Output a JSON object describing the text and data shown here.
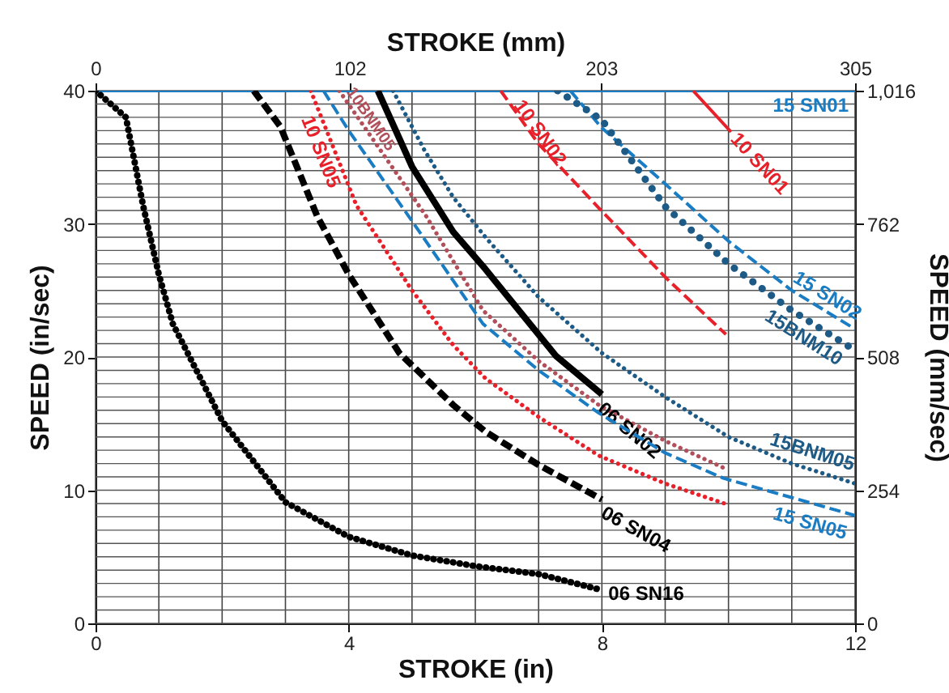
{
  "chart_data": {
    "type": "line",
    "xlabel": "STROKE (in)",
    "ylabel": "SPEED (in/sec)",
    "x2label": "STROKE (mm)",
    "y2label": "SPEED (mm/sec)",
    "xlim": [
      0,
      12
    ],
    "ylim": [
      0,
      40
    ],
    "x2lim": [
      0,
      305
    ],
    "y2lim": [
      0,
      1016
    ],
    "xticks": [
      0,
      {
        "value": 1,
        "label": null
      },
      {
        "value": 2,
        "label": null
      },
      {
        "value": 3,
        "label": null
      },
      4,
      {
        "value": 5,
        "label": null
      },
      {
        "value": 6,
        "label": null
      },
      {
        "value": 7,
        "label": null
      },
      8,
      {
        "value": 9,
        "label": null
      },
      {
        "value": 10,
        "label": null
      },
      {
        "value": 11,
        "label": null
      },
      12
    ],
    "yticks": [
      0,
      {
        "value": 1,
        "label": null
      },
      {
        "value": 2,
        "label": null
      },
      {
        "value": 3,
        "label": null
      },
      {
        "value": 4,
        "label": null
      },
      {
        "value": 5,
        "label": null
      },
      {
        "value": 6,
        "label": null
      },
      {
        "value": 7,
        "label": null
      },
      {
        "value": 8,
        "label": null
      },
      {
        "value": 9,
        "label": null
      },
      10,
      {
        "value": 11,
        "label": null
      },
      {
        "value": 12,
        "label": null
      },
      {
        "value": 13,
        "label": null
      },
      {
        "value": 14,
        "label": null
      },
      {
        "value": 15,
        "label": null
      },
      {
        "value": 16,
        "label": null
      },
      {
        "value": 17,
        "label": null
      },
      {
        "value": 18,
        "label": null
      },
      {
        "value": 19,
        "label": null
      },
      20,
      {
        "value": 21,
        "label": null
      },
      {
        "value": 22,
        "label": null
      },
      {
        "value": 23,
        "label": null
      },
      {
        "value": 24,
        "label": null
      },
      {
        "value": 25,
        "label": null
      },
      {
        "value": 26,
        "label": null
      },
      {
        "value": 27,
        "label": null
      },
      {
        "value": 28,
        "label": null
      },
      {
        "value": 29,
        "label": null
      },
      30,
      {
        "value": 31,
        "label": null
      },
      {
        "value": 32,
        "label": null
      },
      {
        "value": 33,
        "label": null
      },
      {
        "value": 34,
        "label": null
      },
      {
        "value": 35,
        "label": null
      },
      {
        "value": 36,
        "label": null
      },
      {
        "value": 37,
        "label": null
      },
      {
        "value": 38,
        "label": null
      },
      {
        "value": 39,
        "label": null
      },
      40
    ],
    "x2ticks": [
      0,
      102,
      203,
      305
    ],
    "y2ticks": [
      0,
      254,
      508,
      762,
      {
        "value": 1016,
        "label": "1,016"
      }
    ],
    "grid": true,
    "series": [
      {
        "name": "15 SN01",
        "color": "#1a7dc4",
        "line_style": "solid",
        "x": [
          0,
          12
        ],
        "values": [
          40,
          40
        ]
      },
      {
        "name": "10 SN01",
        "color": "#e8202a",
        "line_style": "solid",
        "x": [
          9.44,
          10.04
        ],
        "values": [
          40,
          36.9
        ]
      },
      {
        "name": "10 SN02",
        "color": "#e8202a",
        "line_style": "dashed",
        "x": [
          6.4,
          7,
          7.95,
          9,
          9.96
        ],
        "values": [
          40,
          36,
          31.2,
          26,
          21.7
        ]
      },
      {
        "name": "15 SN02",
        "color": "#1a7dc4",
        "line_style": "dashed",
        "x": [
          7.5,
          8,
          9,
          10,
          11,
          12
        ],
        "values": [
          40,
          37.2,
          33,
          28.7,
          25,
          22.1
        ]
      },
      {
        "name": "15BNM10",
        "color": "#1d5b86",
        "line_style": "dotted",
        "x": [
          7.3,
          8,
          9,
          10,
          11,
          12
        ],
        "values": [
          40,
          37.8,
          31.3,
          27,
          23.5,
          20.5
        ]
      },
      {
        "name": "10 SN05",
        "color": "#e8202a",
        "line_style": "dotted",
        "x": [
          3.4,
          4.12,
          5,
          5.65,
          6.16,
          7,
          7.95,
          9,
          10
        ],
        "values": [
          40,
          31.4,
          25,
          20.9,
          18.4,
          15.5,
          12.6,
          10.5,
          8.9
        ]
      },
      {
        "name": "10BNM05",
        "color": "#b14f5a",
        "line_style": "dotted",
        "x": [
          3.85,
          5.22,
          6.12,
          7,
          7.95,
          9,
          9.96
        ],
        "values": [
          40,
          30.6,
          23.5,
          19.7,
          16.4,
          13.7,
          11.6
        ]
      },
      {
        "name": "06 SN02",
        "color": "#000000",
        "line_style": "solid",
        "x": [
          4.46,
          5,
          5.65,
          6.16,
          7.27,
          8
        ],
        "values": [
          40,
          34.3,
          29.4,
          26.6,
          20.1,
          17.2
        ]
      },
      {
        "name": "15BNM05",
        "color": "#1d5b86",
        "line_style": "dotted",
        "x": [
          4.7,
          5.2,
          5.65,
          6.16,
          7,
          8,
          9,
          10,
          11,
          12
        ],
        "values": [
          40,
          35.5,
          32,
          29,
          24.5,
          20.3,
          17,
          14,
          12,
          10.5
        ]
      },
      {
        "name": "06 SN04",
        "color": "#000000",
        "line_style": "dashed",
        "x": [
          2.5,
          2.92,
          3.5,
          4,
          4.8,
          5.65,
          6.16,
          7,
          8
        ],
        "values": [
          40,
          37.3,
          30.6,
          26.2,
          20.3,
          16.4,
          14.4,
          11.9,
          9.3
        ]
      },
      {
        "name": "15 SN05",
        "color": "#1a7dc4",
        "line_style": "dashed",
        "x": [
          3.6,
          4,
          5.06,
          6.12,
          7,
          7.95,
          9,
          9.92,
          12
        ],
        "values": [
          40,
          37,
          29.8,
          22.5,
          19,
          15.8,
          12.8,
          10.9,
          8.1
        ]
      },
      {
        "name": "06 SN16",
        "color": "#000000",
        "line_style": "dotted",
        "x": [
          0,
          0.48,
          0.75,
          1,
          1.22,
          2,
          3,
          4,
          5,
          6,
          7,
          8
        ],
        "values": [
          40,
          38,
          31.4,
          26.2,
          22.5,
          15.2,
          9.1,
          6.5,
          5.1,
          4.3,
          3.7,
          2.5
        ]
      }
    ]
  }
}
